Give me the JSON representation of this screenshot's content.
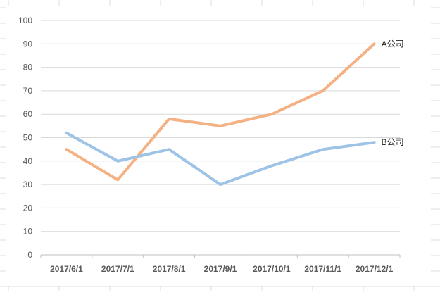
{
  "colors": {
    "sheet_grid": "#dcdcdc",
    "chart_grid": "#d9d9d9",
    "axis": "#bfbfbf",
    "tick_text": "#595959",
    "label_text": "#262626"
  },
  "chart_data": {
    "type": "line",
    "title": "",
    "xlabel": "",
    "ylabel": "",
    "categories": [
      "2017/6/1",
      "2017/7/1",
      "2017/8/1",
      "2017/9/1",
      "2017/10/1",
      "2017/11/1",
      "2017/12/1"
    ],
    "ylim": [
      0,
      100
    ],
    "yticks": [
      0,
      10,
      20,
      30,
      40,
      50,
      60,
      70,
      80,
      90,
      100
    ],
    "grid": true,
    "legend": "none",
    "series": [
      {
        "name": "A公司",
        "color": "#f4b183",
        "values": [
          45,
          32,
          58,
          55,
          60,
          70,
          90
        ]
      },
      {
        "name": "B公司",
        "color": "#9dc3e6",
        "values": [
          52,
          40,
          45,
          30,
          38,
          45,
          48
        ]
      }
    ]
  }
}
